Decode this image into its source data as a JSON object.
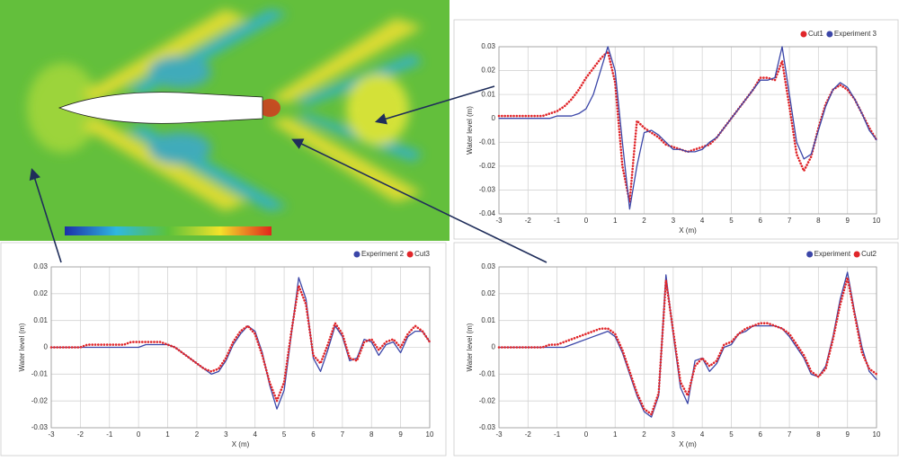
{
  "chart_data": [
    {
      "type": "line",
      "legend": "upper right",
      "grid": true,
      "xlabel": "X (m)",
      "ylabel": "Water level (m)",
      "xlim": [
        -3,
        10
      ],
      "ylim": [
        -0.04,
        0.03
      ],
      "xticks": [
        -3,
        -2,
        -1,
        0,
        1,
        2,
        3,
        4,
        5,
        6,
        7,
        8,
        9,
        10
      ],
      "yticks": [
        -0.04,
        -0.03,
        -0.02,
        -0.01,
        0,
        0.01,
        0.02,
        0.03
      ],
      "x": [
        -3,
        -2.75,
        -2.5,
        -2.25,
        -2,
        -1.75,
        -1.5,
        -1.25,
        -1,
        -0.75,
        -0.5,
        -0.25,
        0,
        0.25,
        0.5,
        0.75,
        1,
        1.25,
        1.5,
        1.75,
        2,
        2.25,
        2.5,
        2.75,
        3,
        3.25,
        3.5,
        3.75,
        4,
        4.25,
        4.5,
        4.75,
        5,
        5.25,
        5.5,
        5.75,
        6,
        6.25,
        6.5,
        6.75,
        7,
        7.25,
        7.5,
        7.75,
        8,
        8.25,
        8.5,
        8.75,
        9,
        9.25,
        9.5,
        9.75,
        10
      ],
      "series": [
        {
          "name": "Cut1",
          "color": "#e0262a",
          "style": "dotted",
          "values": [
            0.001,
            0.001,
            0.001,
            0.001,
            0.001,
            0.001,
            0.001,
            0.002,
            0.003,
            0.005,
            0.008,
            0.012,
            0.017,
            0.021,
            0.025,
            0.028,
            0.015,
            -0.02,
            -0.035,
            -0.001,
            -0.004,
            -0.006,
            -0.008,
            -0.011,
            -0.012,
            -0.013,
            -0.014,
            -0.013,
            -0.012,
            -0.011,
            -0.008,
            -0.004,
            0,
            0.004,
            0.008,
            0.012,
            0.017,
            0.017,
            0.016,
            0.024,
            0.005,
            -0.015,
            -0.022,
            -0.016,
            -0.004,
            0.006,
            0.012,
            0.014,
            0.012,
            0.008,
            0.002,
            -0.004,
            -0.009
          ]
        },
        {
          "name": "Experiment 3",
          "color": "#3b46a8",
          "style": "solid",
          "values": [
            0,
            0,
            0,
            0,
            0,
            0,
            0,
            0,
            0.001,
            0.001,
            0.001,
            0.002,
            0.004,
            0.01,
            0.02,
            0.03,
            0.02,
            -0.01,
            -0.038,
            -0.02,
            -0.006,
            -0.005,
            -0.007,
            -0.01,
            -0.013,
            -0.013,
            -0.014,
            -0.014,
            -0.013,
            -0.01,
            -0.008,
            -0.004,
            0,
            0.004,
            0.008,
            0.012,
            0.016,
            0.016,
            0.017,
            0.03,
            0.01,
            -0.01,
            -0.017,
            -0.015,
            -0.005,
            0.005,
            0.012,
            0.015,
            0.013,
            0.008,
            0.002,
            -0.005,
            -0.009
          ]
        }
      ]
    },
    {
      "type": "line",
      "legend": "upper right",
      "grid": true,
      "xlabel": "X (m)",
      "ylabel": "Water level (m)",
      "xlim": [
        -3,
        10
      ],
      "ylim": [
        -0.03,
        0.03
      ],
      "xticks": [
        -3,
        -2,
        -1,
        0,
        1,
        2,
        3,
        4,
        5,
        6,
        7,
        8,
        9,
        10
      ],
      "yticks": [
        -0.03,
        -0.02,
        -0.01,
        0,
        0.01,
        0.02,
        0.03
      ],
      "x": [
        -3,
        -2.75,
        -2.5,
        -2.25,
        -2,
        -1.75,
        -1.5,
        -1.25,
        -1,
        -0.75,
        -0.5,
        -0.25,
        0,
        0.25,
        0.5,
        0.75,
        1,
        1.25,
        1.5,
        1.75,
        2,
        2.25,
        2.5,
        2.75,
        3,
        3.25,
        3.5,
        3.75,
        4,
        4.25,
        4.5,
        4.75,
        5,
        5.25,
        5.5,
        5.75,
        6,
        6.25,
        6.5,
        6.75,
        7,
        7.25,
        7.5,
        7.75,
        8,
        8.25,
        8.5,
        8.75,
        9,
        9.25,
        9.5,
        9.75,
        10
      ],
      "series": [
        {
          "name": "Experiment 2",
          "color": "#3b46a8",
          "style": "solid",
          "values": [
            0,
            0,
            0,
            0,
            0,
            0,
            0,
            0,
            0,
            0,
            0,
            0,
            0,
            0.001,
            0.001,
            0.001,
            0.001,
            0,
            -0.002,
            -0.004,
            -0.006,
            -0.008,
            -0.01,
            -0.009,
            -0.005,
            0.001,
            0.005,
            0.008,
            0.006,
            -0.002,
            -0.014,
            -0.023,
            -0.016,
            0.005,
            0.026,
            0.018,
            -0.004,
            -0.009,
            -0.001,
            0.008,
            0.004,
            -0.005,
            -0.004,
            0.003,
            0.002,
            -0.003,
            0.001,
            0.002,
            -0.002,
            0.004,
            0.006,
            0.006,
            0.002
          ]
        },
        {
          "name": "Cut3",
          "color": "#e0262a",
          "style": "dotted",
          "values": [
            0,
            0,
            0,
            0,
            0,
            0.001,
            0.001,
            0.001,
            0.001,
            0.001,
            0.001,
            0.002,
            0.002,
            0.002,
            0.002,
            0.002,
            0.001,
            0,
            -0.002,
            -0.004,
            -0.006,
            -0.008,
            -0.009,
            -0.008,
            -0.004,
            0.002,
            0.006,
            0.008,
            0.005,
            -0.003,
            -0.013,
            -0.02,
            -0.013,
            0.006,
            0.023,
            0.016,
            -0.003,
            -0.006,
            0.001,
            0.009,
            0.005,
            -0.004,
            -0.005,
            0.002,
            0.003,
            -0.001,
            0.002,
            0.003,
            0,
            0.005,
            0.008,
            0.006,
            0.002
          ]
        }
      ]
    },
    {
      "type": "line",
      "legend": "upper right",
      "grid": true,
      "xlabel": "X (m)",
      "ylabel": "Water level (m)",
      "xlim": [
        -3,
        10
      ],
      "ylim": [
        -0.03,
        0.03
      ],
      "xticks": [
        -3,
        -2,
        -1,
        0,
        1,
        2,
        3,
        4,
        5,
        6,
        7,
        8,
        9,
        10
      ],
      "yticks": [
        -0.03,
        -0.02,
        -0.01,
        0,
        0.01,
        0.02,
        0.03
      ],
      "x": [
        -3,
        -2.75,
        -2.5,
        -2.25,
        -2,
        -1.75,
        -1.5,
        -1.25,
        -1,
        -0.75,
        -0.5,
        -0.25,
        0,
        0.25,
        0.5,
        0.75,
        1,
        1.25,
        1.5,
        1.75,
        2,
        2.25,
        2.5,
        2.75,
        3,
        3.25,
        3.5,
        3.75,
        4,
        4.25,
        4.5,
        4.75,
        5,
        5.25,
        5.5,
        5.75,
        6,
        6.25,
        6.5,
        6.75,
        7,
        7.25,
        7.5,
        7.75,
        8,
        8.25,
        8.5,
        8.75,
        9,
        9.25,
        9.5,
        9.75,
        10
      ],
      "series": [
        {
          "name": "Experiment",
          "color": "#3b46a8",
          "style": "solid",
          "values": [
            0,
            0,
            0,
            0,
            0,
            0,
            0,
            0,
            0,
            0,
            0.001,
            0.002,
            0.003,
            0.004,
            0.005,
            0.006,
            0.004,
            -0.002,
            -0.01,
            -0.018,
            -0.024,
            -0.026,
            -0.018,
            0.027,
            0.005,
            -0.015,
            -0.021,
            -0.005,
            -0.004,
            -0.009,
            -0.006,
            0,
            0.001,
            0.005,
            0.006,
            0.008,
            0.008,
            0.008,
            0.008,
            0.007,
            0.004,
            0,
            -0.004,
            -0.01,
            -0.011,
            -0.007,
            0.004,
            0.018,
            0.028,
            0.013,
            0,
            -0.009,
            -0.012
          ]
        },
        {
          "name": "Cut2",
          "color": "#e0262a",
          "style": "dotted",
          "values": [
            0,
            0,
            0,
            0,
            0,
            0,
            0,
            0.001,
            0.001,
            0.002,
            0.003,
            0.004,
            0.005,
            0.006,
            0.007,
            0.007,
            0.005,
            -0.001,
            -0.009,
            -0.017,
            -0.023,
            -0.025,
            -0.017,
            0.025,
            0.006,
            -0.013,
            -0.018,
            -0.007,
            -0.004,
            -0.007,
            -0.005,
            0.001,
            0.002,
            0.005,
            0.007,
            0.008,
            0.009,
            0.009,
            0.008,
            0.007,
            0.005,
            0.001,
            -0.003,
            -0.009,
            -0.011,
            -0.008,
            0.003,
            0.016,
            0.026,
            0.012,
            -0.002,
            -0.008,
            -0.01
          ]
        }
      ]
    }
  ]
}
